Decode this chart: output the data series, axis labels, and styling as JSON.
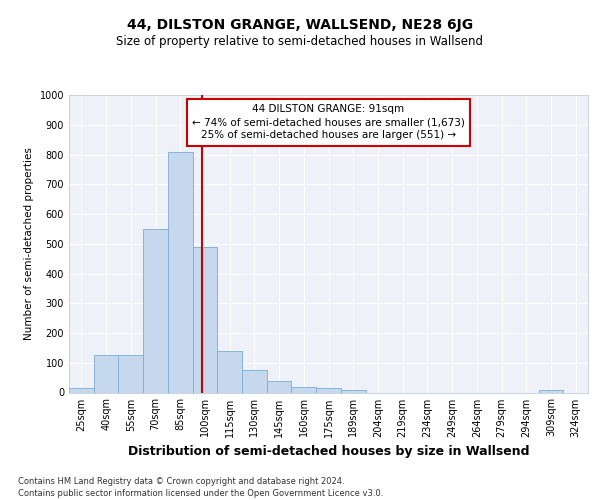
{
  "title": "44, DILSTON GRANGE, WALLSEND, NE28 6JG",
  "subtitle": "Size of property relative to semi-detached houses in Wallsend",
  "xlabel": "Distribution of semi-detached houses by size in Wallsend",
  "ylabel": "Number of semi-detached properties",
  "bins": [
    "25sqm",
    "40sqm",
    "55sqm",
    "70sqm",
    "85sqm",
    "100sqm",
    "115sqm",
    "130sqm",
    "145sqm",
    "160sqm",
    "175sqm",
    "189sqm",
    "204sqm",
    "219sqm",
    "234sqm",
    "249sqm",
    "264sqm",
    "279sqm",
    "294sqm",
    "309sqm",
    "324sqm"
  ],
  "values": [
    15,
    125,
    125,
    550,
    810,
    490,
    140,
    75,
    40,
    20,
    15,
    10,
    0,
    0,
    0,
    0,
    0,
    0,
    0,
    10,
    0
  ],
  "bar_color": "#c5d8ee",
  "bar_edge_color": "#7aadd4",
  "vline_color": "#cc0000",
  "annotation_text": "44 DILSTON GRANGE: 91sqm\n← 74% of semi-detached houses are smaller (1,673)\n25% of semi-detached houses are larger (551) →",
  "annotation_box_color": "#ffffff",
  "annotation_box_edge": "#cc0000",
  "footer": "Contains HM Land Registry data © Crown copyright and database right 2024.\nContains public sector information licensed under the Open Government Licence v3.0.",
  "ylim": [
    0,
    1000
  ],
  "background_color": "#eef2f8",
  "grid_color": "#ffffff",
  "title_fontsize": 10,
  "subtitle_fontsize": 8.5,
  "xlabel_fontsize": 9,
  "ylabel_fontsize": 7.5,
  "tick_fontsize": 7,
  "annot_fontsize": 7.5,
  "footer_fontsize": 6
}
